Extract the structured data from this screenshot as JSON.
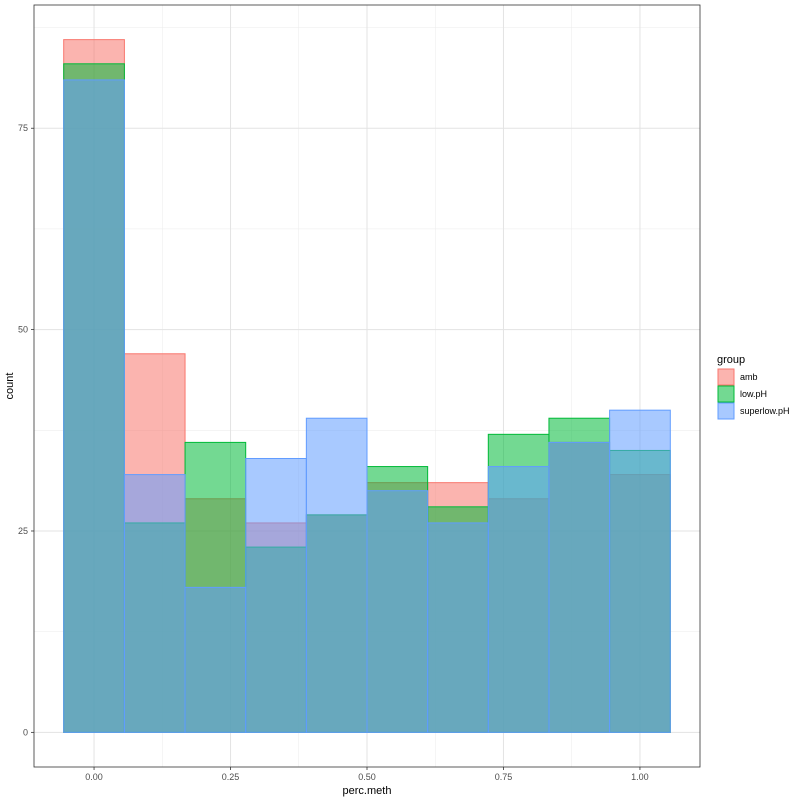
{
  "chart_data": {
    "type": "bar",
    "xlabel": "perc.meth",
    "ylabel": "count",
    "xlim": [
      -0.11,
      1.11
    ],
    "ylim": [
      -4.3,
      90.3
    ],
    "x_ticks": [
      0.0,
      0.25,
      0.5,
      0.75,
      1.0
    ],
    "x_tick_labels": [
      "0.00",
      "0.25",
      "0.50",
      "0.75",
      "1.00"
    ],
    "y_ticks": [
      0,
      25,
      50,
      75
    ],
    "y_tick_labels": [
      "0",
      "25",
      "50",
      "75"
    ],
    "bin_edges": [
      -0.0556,
      0.0556,
      0.1667,
      0.2778,
      0.3889,
      0.5,
      0.6111,
      0.7222,
      0.8333,
      0.9444,
      1.0556
    ],
    "grid": true,
    "legend": {
      "title": "group",
      "position": "right"
    },
    "series": [
      {
        "name": "amb",
        "color": "#F8766D",
        "values": [
          86,
          47,
          29,
          26,
          27,
          31,
          31,
          29,
          36,
          32
        ]
      },
      {
        "name": "low.pH",
        "color": "#00BA38",
        "values": [
          83,
          26,
          36,
          23,
          27,
          33,
          28,
          37,
          39,
          35
        ]
      },
      {
        "name": "superlow.pH",
        "color": "#619CFF",
        "values": [
          81,
          32,
          18,
          34,
          39,
          30,
          26,
          33,
          36,
          40
        ]
      }
    ]
  }
}
